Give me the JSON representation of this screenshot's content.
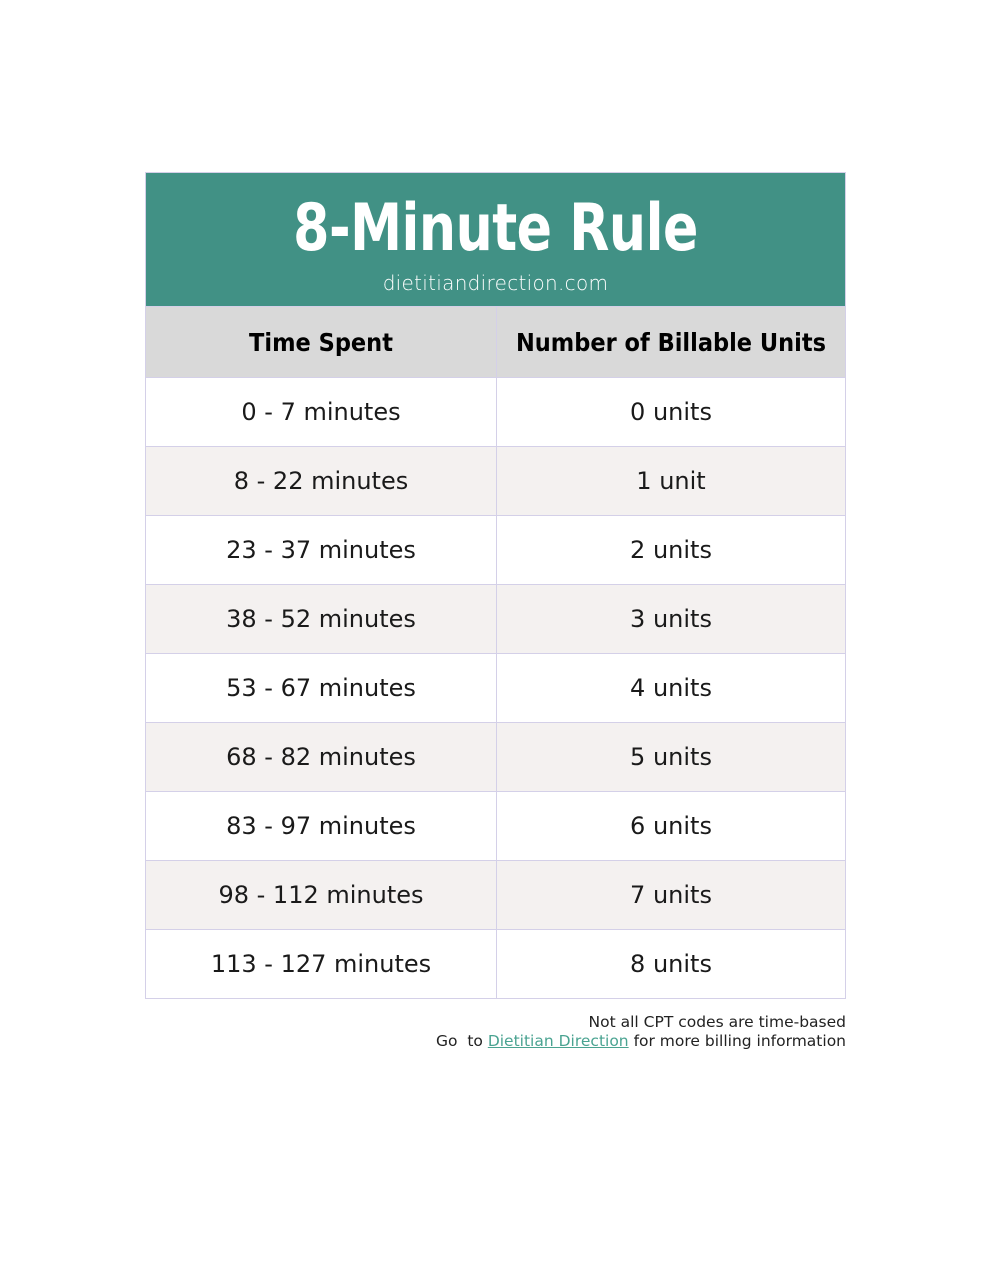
{
  "header": {
    "title": "8-Minute Rule",
    "site": "dietitiandirection.com"
  },
  "columns": [
    "Time Spent",
    "Number of Billable Units"
  ],
  "rows": [
    [
      "0 - 7 minutes",
      "0 units"
    ],
    [
      "8 - 22 minutes",
      "1 unit"
    ],
    [
      "23 - 37 minutes",
      "2 units"
    ],
    [
      "38 - 52 minutes",
      "3 units"
    ],
    [
      "53 - 67 minutes",
      "4 units"
    ],
    [
      "68 - 82 minutes",
      "5 units"
    ],
    [
      "83 - 97 minutes",
      "6 units"
    ],
    [
      "98 - 112 minutes",
      "7 units"
    ],
    [
      "113 - 127 minutes",
      "8 units"
    ]
  ],
  "footer": {
    "line1": "Not all CPT codes are time-based",
    "prefix": "Go  to ",
    "link": "Dietitian Direction",
    "suffix": " for more billing information"
  },
  "colors": {
    "banner": "#419185",
    "header_row": "#d9d9d9",
    "alt_row": "#f4f1f0",
    "link": "#4aa391"
  }
}
